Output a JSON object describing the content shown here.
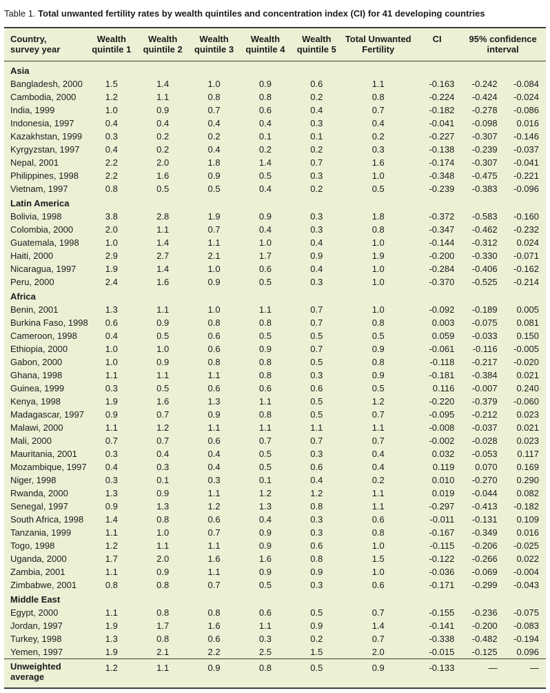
{
  "caption": {
    "label": "Table 1.",
    "title": "Total unwanted fertility rates by wealth quintiles and concentration index (CI) for 41 developing countries"
  },
  "headers": {
    "country": [
      "Country,",
      "survey year"
    ],
    "q1": [
      "Wealth",
      "quintile 1"
    ],
    "q2": [
      "Wealth",
      "quintile 2"
    ],
    "q3": [
      "Wealth",
      "quintile 3"
    ],
    "q4": [
      "Wealth",
      "quintile 4"
    ],
    "q5": [
      "Wealth",
      "quintile 5"
    ],
    "total": [
      "Total Unwanted",
      "Fertility"
    ],
    "ci": [
      "CI",
      ""
    ],
    "conf": [
      "95% confidence",
      "interval"
    ]
  },
  "regions": [
    {
      "name": "Asia",
      "rows": [
        [
          "Bangladesh, 2000",
          "1.5",
          "1.4",
          "1.0",
          "0.9",
          "0.6",
          "1.1",
          "-0.163",
          "-0.242",
          "-0.084"
        ],
        [
          "Cambodia, 2000",
          "1.2",
          "1.1",
          "0.8",
          "0.8",
          "0.2",
          "0.8",
          "-0.224",
          "-0.424",
          "-0.024"
        ],
        [
          "India, 1999",
          "1.0",
          "0.9",
          "0.7",
          "0.6",
          "0.4",
          "0.7",
          "-0.182",
          "-0.278",
          "-0.086"
        ],
        [
          "Indonesia, 1997",
          "0.4",
          "0.4",
          "0.4",
          "0.4",
          "0.3",
          "0.4",
          "-0.041",
          "-0.098",
          "0.016"
        ],
        [
          "Kazakhstan, 1999",
          "0.3",
          "0.2",
          "0.2",
          "0.1",
          "0.1",
          "0.2",
          "-0.227",
          "-0.307",
          "-0.146"
        ],
        [
          "Kyrgyzstan, 1997",
          "0.4",
          "0.2",
          "0.4",
          "0.2",
          "0.2",
          "0.3",
          "-0.138",
          "-0.239",
          "-0.037"
        ],
        [
          "Nepal, 2001",
          "2.2",
          "2.0",
          "1.8",
          "1.4",
          "0.7",
          "1.6",
          "-0.174",
          "-0.307",
          "-0.041"
        ],
        [
          "Philippines, 1998",
          "2.2",
          "1.6",
          "0.9",
          "0.5",
          "0.3",
          "1.0",
          "-0.348",
          "-0.475",
          "-0.221"
        ],
        [
          "Vietnam, 1997",
          "0.8",
          "0.5",
          "0.5",
          "0.4",
          "0.2",
          "0.5",
          "-0.239",
          "-0.383",
          "-0.096"
        ]
      ]
    },
    {
      "name": "Latin America",
      "rows": [
        [
          "Bolivia, 1998",
          "3.8",
          "2.8",
          "1.9",
          "0.9",
          "0.3",
          "1.8",
          "-0.372",
          "-0.583",
          "-0.160"
        ],
        [
          "Colombia, 2000",
          "2.0",
          "1.1",
          "0.7",
          "0.4",
          "0.3",
          "0.8",
          "-0.347",
          "-0.462",
          "-0.232"
        ],
        [
          "Guatemala, 1998",
          "1.0",
          "1.4",
          "1.1",
          "1.0",
          "0.4",
          "1.0",
          "-0.144",
          "-0.312",
          "0.024"
        ],
        [
          "Haiti, 2000",
          "2.9",
          "2.7",
          "2.1",
          "1.7",
          "0.9",
          "1.9",
          "-0.200",
          "-0.330",
          "-0.071"
        ],
        [
          "Nicaragua, 1997",
          "1.9",
          "1.4",
          "1.0",
          "0.6",
          "0.4",
          "1.0",
          "-0.284",
          "-0.406",
          "-0.162"
        ],
        [
          "Peru, 2000",
          "2.4",
          "1.6",
          "0.9",
          "0.5",
          "0.3",
          "1.0",
          "-0.370",
          "-0.525",
          "-0.214"
        ]
      ]
    },
    {
      "name": "Africa",
      "rows": [
        [
          "Benin, 2001",
          "1.3",
          "1.1",
          "1.0",
          "1.1",
          "0.7",
          "1.0",
          "-0.092",
          "-0.189",
          "0.005"
        ],
        [
          "Burkina Faso, 1998",
          "0.6",
          "0.9",
          "0.8",
          "0.8",
          "0.7",
          "0.8",
          "0.003",
          "-0.075",
          "0.081"
        ],
        [
          "Cameroon, 1998",
          "0.4",
          "0.5",
          "0.6",
          "0.5",
          "0.5",
          "0.5",
          "0.059",
          "-0.033",
          "0.150"
        ],
        [
          "Ethiopia, 2000",
          "1.0",
          "1.0",
          "0.6",
          "0.9",
          "0.7",
          "0.9",
          "-0.061",
          "-0.116",
          "-0.005"
        ],
        [
          "Gabon, 2000",
          "1.0",
          "0.9",
          "0.8",
          "0.8",
          "0.5",
          "0.8",
          "-0.118",
          "-0.217",
          "-0.020"
        ],
        [
          "Ghana, 1998",
          "1.1",
          "1.1",
          "1.1",
          "0.8",
          "0.3",
          "0.9",
          "-0.181",
          "-0.384",
          "0.021"
        ],
        [
          "Guinea, 1999",
          "0.3",
          "0.5",
          "0.6",
          "0.6",
          "0.6",
          "0.5",
          "0.116",
          "-0.007",
          "0.240"
        ],
        [
          "Kenya, 1998",
          "1.9",
          "1.6",
          "1.3",
          "1.1",
          "0.5",
          "1.2",
          "-0.220",
          "-0.379",
          "-0.060"
        ],
        [
          "Madagascar, 1997",
          "0.9",
          "0.7",
          "0.9",
          "0.8",
          "0.5",
          "0.7",
          "-0.095",
          "-0.212",
          "0.023"
        ],
        [
          "Malawi, 2000",
          "1.1",
          "1.2",
          "1.1",
          "1.1",
          "1.1",
          "1.1",
          "-0.008",
          "-0.037",
          "0.021"
        ],
        [
          "Mali, 2000",
          "0.7",
          "0.7",
          "0.6",
          "0.7",
          "0.7",
          "0.7",
          "-0.002",
          "-0.028",
          "0.023"
        ],
        [
          "Mauritania, 2001",
          "0.3",
          "0.4",
          "0.4",
          "0.5",
          "0.3",
          "0.4",
          "0.032",
          "-0.053",
          "0.117"
        ],
        [
          "Mozambique, 1997",
          "0.4",
          "0.3",
          "0.4",
          "0.5",
          "0.6",
          "0.4",
          "0.119",
          "0.070",
          "0.169"
        ],
        [
          "Niger, 1998",
          "0.3",
          "0.1",
          "0.3",
          "0.1",
          "0.4",
          "0.2",
          "0.010",
          "-0.270",
          "0.290"
        ],
        [
          "Rwanda, 2000",
          "1.3",
          "0.9",
          "1.1",
          "1.2",
          "1.2",
          "1.1",
          "0.019",
          "-0.044",
          "0.082"
        ],
        [
          "Senegal, 1997",
          "0.9",
          "1.3",
          "1.2",
          "1.3",
          "0.8",
          "1.1",
          "-0.297",
          "-0.413",
          "-0.182"
        ],
        [
          "South Africa, 1998",
          "1.4",
          "0.8",
          "0.6",
          "0.4",
          "0.3",
          "0.6",
          "-0.011",
          "-0.131",
          "0.109"
        ],
        [
          "Tanzania, 1999",
          "1.1",
          "1.0",
          "0.7",
          "0.9",
          "0.3",
          "0.8",
          "-0.167",
          "-0.349",
          "0.016"
        ],
        [
          "Togo, 1998",
          "1.2",
          "1.1",
          "1.1",
          "0.9",
          "0.6",
          "1.0",
          "-0.115",
          "-0.206",
          "-0.025"
        ],
        [
          "Uganda, 2000",
          "1.7",
          "2.0",
          "1.6",
          "1.6",
          "0.8",
          "1.5",
          "-0.122",
          "-0.266",
          "0.022"
        ],
        [
          "Zambia, 2001",
          "1.1",
          "0.9",
          "1.1",
          "0.9",
          "0.9",
          "1.0",
          "-0.036",
          "-0.069",
          "-0.004"
        ],
        [
          "Zimbabwe, 2001",
          "0.8",
          "0.8",
          "0.7",
          "0.5",
          "0.3",
          "0.6",
          "-0.171",
          "-0.299",
          "-0.043"
        ]
      ]
    },
    {
      "name": "Middle East",
      "rows": [
        [
          "Egypt, 2000",
          "1.1",
          "0.8",
          "0.8",
          "0.6",
          "0.5",
          "0.7",
          "-0.155",
          "-0.236",
          "-0.075"
        ],
        [
          "Jordan, 1997",
          "1.9",
          "1.7",
          "1.6",
          "1.1",
          "0.9",
          "1.4",
          "-0.141",
          "-0.200",
          "-0.083"
        ],
        [
          "Turkey, 1998",
          "1.3",
          "0.8",
          "0.6",
          "0.3",
          "0.2",
          "0.7",
          "-0.338",
          "-0.482",
          "-0.194"
        ],
        [
          "Yemen, 1997",
          "1.9",
          "2.1",
          "2.2",
          "2.5",
          "1.5",
          "2.0",
          "-0.015",
          "-0.125",
          "0.096"
        ]
      ]
    }
  ],
  "average": {
    "label": [
      "Unweighted",
      "average"
    ],
    "values": [
      "1.2",
      "1.1",
      "0.9",
      "0.8",
      "0.5",
      "0.9",
      "-0.133",
      "—",
      "—"
    ]
  }
}
